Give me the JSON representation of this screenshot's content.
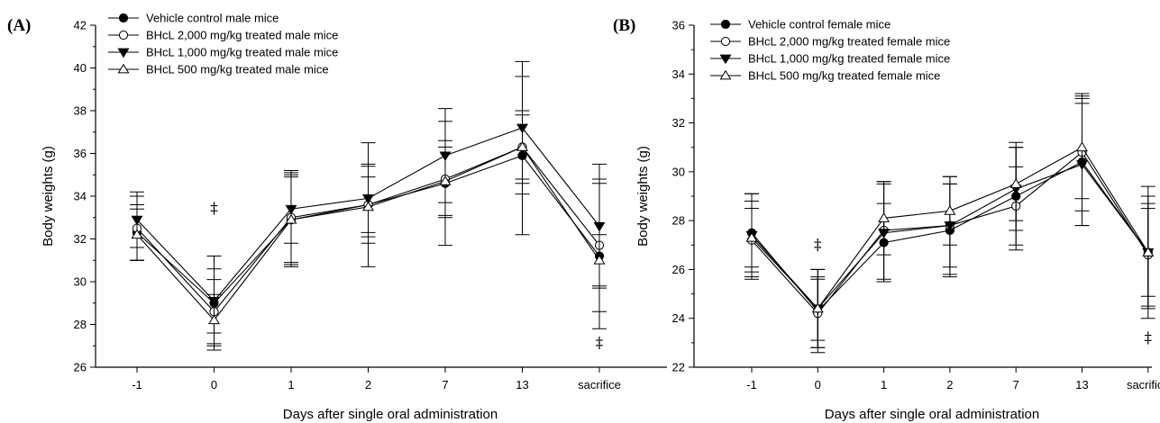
{
  "chart_data": [
    {
      "type": "line",
      "panel_label": "(A)",
      "xlabel": "Days after single oral administration",
      "ylabel": "Body weights (g)",
      "categories": [
        "-1",
        "0",
        "1",
        "2",
        "7",
        "13",
        "sacrifice"
      ],
      "ylim": [
        26,
        42
      ],
      "yticks": [
        26,
        28,
        30,
        32,
        34,
        36,
        38,
        40,
        42
      ],
      "grid": false,
      "legend_position": "top-left",
      "annotations": [
        {
          "category": "0",
          "y": 33.2,
          "text": "‡"
        },
        {
          "category": "sacrifice",
          "y": 26.9,
          "text": "‡"
        }
      ],
      "series": [
        {
          "name": "Vehicle control male mice",
          "marker": "filled-circle",
          "values": [
            32.3,
            29.0,
            32.9,
            33.6,
            34.6,
            35.9,
            31.2
          ],
          "errors": [
            1.3,
            2.2,
            2.0,
            2.9,
            2.9,
            3.7,
            3.4
          ]
        },
        {
          "name": "BHcL 2,000 mg/kg treated male mice",
          "marker": "open-circle",
          "values": [
            32.5,
            28.6,
            33.0,
            33.6,
            34.8,
            36.3,
            31.7
          ],
          "errors": [
            1.5,
            1.5,
            2.2,
            1.8,
            1.8,
            1.7,
            3.1
          ]
        },
        {
          "name": "BHcL 1,000 mg/kg treated male mice",
          "marker": "filled-triangle-down",
          "values": [
            32.9,
            29.1,
            33.4,
            33.9,
            35.9,
            37.2,
            32.6
          ],
          "errors": [
            1.3,
            1.5,
            1.6,
            1.6,
            2.2,
            3.1,
            2.9
          ]
        },
        {
          "name": "BHcL 500 mg/kg treated male mice",
          "marker": "open-triangle-up",
          "values": [
            32.2,
            28.2,
            32.9,
            33.5,
            34.7,
            36.3,
            31.0
          ],
          "errors": [
            1.2,
            1.2,
            2.2,
            1.4,
            1.6,
            1.5,
            1.2
          ]
        }
      ]
    },
    {
      "type": "line",
      "panel_label": "(B)",
      "xlabel": "Days after single oral administration",
      "ylabel": "Body weights (g)",
      "categories": [
        "-1",
        "0",
        "1",
        "2",
        "7",
        "13",
        "sacrifice"
      ],
      "ylim": [
        22,
        36
      ],
      "yticks": [
        22,
        24,
        26,
        28,
        30,
        32,
        34,
        36
      ],
      "grid": false,
      "legend_position": "top-left",
      "annotations": [
        {
          "category": "0",
          "y": 26.8,
          "text": "‡"
        },
        {
          "category": "sacrifice",
          "y": 23.0,
          "text": "‡"
        }
      ],
      "series": [
        {
          "name": "Vehicle control female mice",
          "marker": "filled-circle",
          "values": [
            27.5,
            24.3,
            27.1,
            27.6,
            29.0,
            30.4,
            26.7
          ],
          "errors": [
            1.6,
            1.7,
            1.6,
            1.9,
            2.2,
            2.6,
            2.7
          ]
        },
        {
          "name": "BHcL 2,000 mg/kg treated female mice",
          "marker": "open-circle",
          "values": [
            27.2,
            24.2,
            27.6,
            27.8,
            28.6,
            30.8,
            26.6
          ],
          "errors": [
            1.6,
            1.4,
            2.0,
            1.7,
            1.6,
            2.4,
            2.1
          ]
        },
        {
          "name": "BHcL 1,000 mg/kg treated female mice",
          "marker": "filled-triangle-down",
          "values": [
            27.4,
            24.4,
            27.5,
            27.8,
            29.3,
            30.3,
            26.7
          ],
          "errors": [
            1.7,
            1.6,
            2.0,
            2.0,
            1.7,
            2.5,
            2.3
          ]
        },
        {
          "name": "BHcL 500 mg/kg treated female mice",
          "marker": "open-triangle-up",
          "values": [
            27.3,
            24.4,
            28.1,
            28.4,
            29.5,
            31.0,
            26.7
          ],
          "errors": [
            1.2,
            1.3,
            1.5,
            1.4,
            1.5,
            2.1,
            1.8
          ]
        }
      ]
    }
  ]
}
